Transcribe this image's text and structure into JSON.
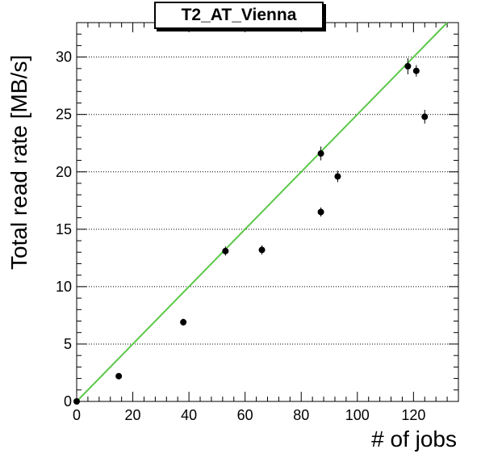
{
  "chart_data": {
    "type": "scatter",
    "title": "T2_AT_Vienna",
    "xlabel": "# of jobs",
    "ylabel": "Total read rate [MB/s]",
    "xlim": [
      0,
      136
    ],
    "ylim": [
      0,
      33
    ],
    "x_ticks": [
      0,
      20,
      40,
      60,
      80,
      100,
      120
    ],
    "y_ticks": [
      0,
      5,
      10,
      15,
      20,
      25,
      30
    ],
    "grid": "horizontal-dotted",
    "points": [
      {
        "x": 0,
        "y": 0.0,
        "err": 0.2
      },
      {
        "x": 15,
        "y": 2.2,
        "err": 0.2
      },
      {
        "x": 38,
        "y": 6.9,
        "err": 0.3
      },
      {
        "x": 53,
        "y": 13.1,
        "err": 0.4
      },
      {
        "x": 66,
        "y": 13.2,
        "err": 0.4
      },
      {
        "x": 87,
        "y": 16.5,
        "err": 0.4
      },
      {
        "x": 87,
        "y": 21.6,
        "err": 0.6
      },
      {
        "x": 93,
        "y": 19.6,
        "err": 0.5
      },
      {
        "x": 118,
        "y": 29.2,
        "err": 0.7
      },
      {
        "x": 121,
        "y": 28.8,
        "err": 0.5
      },
      {
        "x": 124,
        "y": 24.8,
        "err": 0.6
      }
    ],
    "fit_line": {
      "slope": 0.25,
      "intercept": 0.0,
      "color": "#5cc84a"
    },
    "marker_color": "#000000"
  }
}
